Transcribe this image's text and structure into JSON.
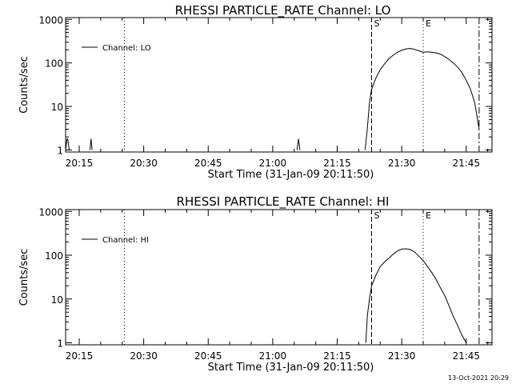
{
  "footer": {
    "timestamp": "13-Oct-2021 20:29"
  },
  "chart_data": [
    {
      "type": "line",
      "title": "RHESSI PARTICLE_RATE Channel: LO",
      "xlabel": "Start Time (31-Jan-09 20:11:50)",
      "ylabel": "Counts/sec",
      "yscale": "log",
      "xlim": [
        "20:11:50",
        "21:51:00"
      ],
      "ylim": [
        0.9,
        1100
      ],
      "x_ticks": [
        "20:15",
        "20:30",
        "20:45",
        "21:00",
        "21:15",
        "21:30",
        "21:45"
      ],
      "y_ticks": [
        "1",
        "10",
        "100",
        "1000"
      ],
      "legend": {
        "position": "top-left",
        "label": "Channel: LO"
      },
      "markers": [
        {
          "label": "",
          "time": "20:25:30",
          "style": "dotted"
        },
        {
          "label": "S",
          "time": "21:23:00",
          "style": "dashed"
        },
        {
          "label": "E",
          "time": "21:35:00",
          "style": "dotted"
        },
        {
          "label": "",
          "time": "21:48:00",
          "style": "dashdot"
        }
      ],
      "series": [
        {
          "name": "Channel: LO",
          "segments": [
            {
              "x": [
                "20:11:50",
                "20:12:10",
                "20:12:20",
                "20:12:40"
              ],
              "y": [
                1,
                1.8,
                1.8,
                1
              ]
            },
            {
              "x": [
                "20:17:30",
                "20:17:45",
                "20:18:00"
              ],
              "y": [
                1,
                1.8,
                1
              ]
            },
            {
              "x": [
                "21:05:40",
                "21:06:00",
                "21:06:20"
              ],
              "y": [
                1,
                1.8,
                1
              ]
            },
            {
              "x": [
                "21:21:30",
                "21:22:00",
                "21:22:30",
                "21:23:00",
                "21:24:00",
                "21:25:00",
                "21:26:00",
                "21:27:00",
                "21:28:00",
                "21:29:00",
                "21:30:00",
                "21:31:00",
                "21:32:00",
                "21:33:00",
                "21:34:00",
                "21:35:00",
                "21:36:00",
                "21:37:00",
                "21:38:00",
                "21:39:00",
                "21:40:00",
                "21:41:00",
                "21:42:00",
                "21:43:00",
                "21:44:00",
                "21:45:00",
                "21:46:00",
                "21:47:00",
                "21:47:30",
                "21:48:00"
              ],
              "y": [
                1,
                3,
                12,
                25,
                45,
                70,
                95,
                125,
                150,
                175,
                195,
                210,
                215,
                205,
                190,
                175,
                180,
                175,
                170,
                160,
                140,
                120,
                100,
                80,
                60,
                40,
                25,
                12,
                6,
                3
              ]
            }
          ]
        }
      ]
    },
    {
      "type": "line",
      "title": "RHESSI PARTICLE_RATE Channel: HI",
      "xlabel": "Start Time (31-Jan-09 20:11:50)",
      "ylabel": "Counts/sec",
      "yscale": "log",
      "xlim": [
        "20:11:50",
        "21:51:00"
      ],
      "ylim": [
        0.9,
        1100
      ],
      "x_ticks": [
        "20:15",
        "20:30",
        "20:45",
        "21:00",
        "21:15",
        "21:30",
        "21:45"
      ],
      "y_ticks": [
        "1",
        "10",
        "100",
        "1000"
      ],
      "legend": {
        "position": "top-left",
        "label": "Channel: HI"
      },
      "markers": [
        {
          "label": "",
          "time": "20:25:30",
          "style": "dotted"
        },
        {
          "label": "S",
          "time": "21:23:00",
          "style": "dashed"
        },
        {
          "label": "E",
          "time": "21:35:00",
          "style": "dotted"
        },
        {
          "label": "",
          "time": "21:48:00",
          "style": "dashdot"
        }
      ],
      "series": [
        {
          "name": "Channel: HI",
          "segments": [
            {
              "x": [
                "21:21:40",
                "21:22:00",
                "21:22:30",
                "21:23:00",
                "21:24:00",
                "21:25:00",
                "21:26:00",
                "21:27:00",
                "21:28:00",
                "21:29:00",
                "21:30:00",
                "21:31:00",
                "21:32:00",
                "21:33:00",
                "21:34:00",
                "21:35:00",
                "21:36:00",
                "21:37:00",
                "21:38:00",
                "21:39:00",
                "21:40:00",
                "21:41:00",
                "21:42:00",
                "21:43:00",
                "21:44:00",
                "21:45:00"
              ],
              "y": [
                1,
                4,
                10,
                20,
                35,
                55,
                70,
                85,
                105,
                125,
                138,
                140,
                135,
                118,
                95,
                75,
                55,
                40,
                28,
                18,
                12,
                7,
                4,
                2.5,
                1.5,
                1
              ]
            }
          ]
        }
      ]
    }
  ]
}
